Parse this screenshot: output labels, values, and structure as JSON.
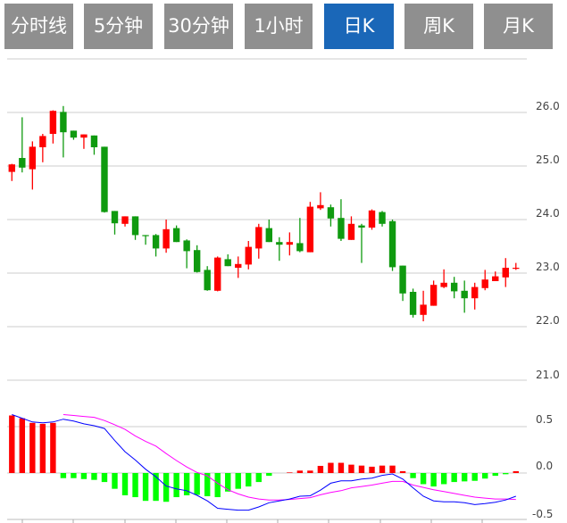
{
  "tabs": [
    {
      "label": "分时线",
      "active": false
    },
    {
      "label": "5分钟",
      "active": false
    },
    {
      "label": "30分钟",
      "active": false
    },
    {
      "label": "1小时",
      "active": false
    },
    {
      "label": "日K",
      "active": true
    },
    {
      "label": "周K",
      "active": false
    },
    {
      "label": "月K",
      "active": false
    }
  ],
  "colors": {
    "tab": "#8f8f8f",
    "tab_active": "#1a67b8",
    "up": "#ff0000",
    "down": "#0f9a0f",
    "macd_down": "#00ff00",
    "dif": "#0000ff",
    "dea": "#ff00ff",
    "grid": "#dddddd"
  },
  "chart_data": [
    {
      "type": "candlestick",
      "ylim": [
        21.0,
        27.0
      ],
      "yticks": [
        "26.0",
        "25.0",
        "24.0",
        "23.0",
        "22.0",
        "21.0"
      ],
      "grid": true,
      "ohlc": [
        [
          24.89,
          25.04,
          24.72,
          25.03
        ],
        [
          25.15,
          25.91,
          24.88,
          24.97
        ],
        [
          24.94,
          25.46,
          24.56,
          25.36
        ],
        [
          25.35,
          25.6,
          25.07,
          25.56
        ],
        [
          25.6,
          26.04,
          25.42,
          26.03
        ],
        [
          26.01,
          26.12,
          25.16,
          25.63
        ],
        [
          25.66,
          25.66,
          25.49,
          25.53
        ],
        [
          25.53,
          25.59,
          25.32,
          25.59
        ],
        [
          25.57,
          25.57,
          25.21,
          25.35
        ],
        [
          25.36,
          25.36,
          24.13,
          24.14
        ],
        [
          24.16,
          24.16,
          23.72,
          23.93
        ],
        [
          23.92,
          24.06,
          23.87,
          24.06
        ],
        [
          24.06,
          24.06,
          23.62,
          23.71
        ],
        [
          23.71,
          23.71,
          23.53,
          23.7
        ],
        [
          23.71,
          23.73,
          23.31,
          23.46
        ],
        [
          23.46,
          24.0,
          23.38,
          23.82
        ],
        [
          23.84,
          23.89,
          23.58,
          23.58
        ],
        [
          23.61,
          23.63,
          23.09,
          23.41
        ],
        [
          23.43,
          23.52,
          23.01,
          23.02
        ],
        [
          23.06,
          23.13,
          22.67,
          22.68
        ],
        [
          22.67,
          23.31,
          22.66,
          23.29
        ],
        [
          23.26,
          23.35,
          23.13,
          23.13
        ],
        [
          23.1,
          23.31,
          22.91,
          23.17
        ],
        [
          23.16,
          23.6,
          23.07,
          23.49
        ],
        [
          23.46,
          23.92,
          23.27,
          23.86
        ],
        [
          23.84,
          24.0,
          23.58,
          23.58
        ],
        [
          23.58,
          23.67,
          23.23,
          23.53
        ],
        [
          23.53,
          23.76,
          23.33,
          23.58
        ],
        [
          23.56,
          24.03,
          23.39,
          23.41
        ],
        [
          23.39,
          24.33,
          23.39,
          24.24
        ],
        [
          24.21,
          24.51,
          24.18,
          24.27
        ],
        [
          24.23,
          24.28,
          23.87,
          24.02
        ],
        [
          24.03,
          24.38,
          23.6,
          23.64
        ],
        [
          23.62,
          24.06,
          23.62,
          23.92
        ],
        [
          23.89,
          23.92,
          23.19,
          23.85
        ],
        [
          23.85,
          24.19,
          23.81,
          24.17
        ],
        [
          24.14,
          24.16,
          23.87,
          23.92
        ],
        [
          23.97,
          24.0,
          23.04,
          23.11
        ],
        [
          23.14,
          23.14,
          22.48,
          22.62
        ],
        [
          22.65,
          22.71,
          22.17,
          22.22
        ],
        [
          22.22,
          22.67,
          22.1,
          22.41
        ],
        [
          22.39,
          22.86,
          22.39,
          22.78
        ],
        [
          22.74,
          23.07,
          22.72,
          22.82
        ],
        [
          22.82,
          22.93,
          22.53,
          22.66
        ],
        [
          22.67,
          22.86,
          22.26,
          22.53
        ],
        [
          22.53,
          22.82,
          22.32,
          22.74
        ],
        [
          22.72,
          23.06,
          22.68,
          22.88
        ],
        [
          22.85,
          23.03,
          22.85,
          22.94
        ],
        [
          22.92,
          23.28,
          22.74,
          23.1
        ],
        [
          23.09,
          23.19,
          23.06,
          23.1
        ]
      ]
    },
    {
      "type": "macd",
      "ylim": [
        -0.5,
        0.7
      ],
      "yticks": [
        "0.5",
        "0.0",
        "-0.5"
      ],
      "histogram": [
        0.62,
        0.59,
        0.54,
        0.53,
        0.54,
        -0.055,
        -0.055,
        -0.065,
        -0.074,
        -0.097,
        -0.17,
        -0.24,
        -0.26,
        -0.3,
        -0.3,
        -0.31,
        -0.26,
        -0.24,
        -0.235,
        -0.25,
        -0.26,
        -0.2,
        -0.17,
        -0.145,
        -0.097,
        -0.03,
        0,
        0.006,
        0.026,
        0.026,
        0.077,
        0.11,
        0.11,
        0.09,
        0.08,
        0.068,
        0.08,
        0.08,
        0.02,
        -0.055,
        -0.12,
        -0.145,
        -0.12,
        -0.097,
        -0.09,
        -0.084,
        -0.06,
        -0.03,
        -0.013,
        0.02
      ],
      "dif": [
        0.63,
        0.59,
        0.55,
        0.54,
        0.55,
        0.58,
        0.56,
        0.53,
        0.51,
        0.48,
        0.35,
        0.23,
        0.14,
        0.04,
        -0.04,
        -0.14,
        -0.17,
        -0.19,
        -0.24,
        -0.3,
        -0.38,
        -0.39,
        -0.4,
        -0.4,
        -0.365,
        -0.32,
        -0.3,
        -0.28,
        -0.25,
        -0.245,
        -0.185,
        -0.11,
        -0.085,
        -0.085,
        -0.065,
        -0.055,
        -0.025,
        -0.01,
        -0.065,
        -0.16,
        -0.25,
        -0.3,
        -0.31,
        -0.31,
        -0.32,
        -0.34,
        -0.33,
        -0.315,
        -0.29,
        -0.25
      ],
      "dea": [
        null,
        null,
        null,
        null,
        null,
        0.63,
        0.62,
        0.61,
        0.6,
        0.565,
        0.52,
        0.47,
        0.4,
        0.34,
        0.29,
        0.21,
        0.135,
        0.065,
        0.006,
        -0.03,
        -0.11,
        -0.18,
        -0.225,
        -0.26,
        -0.28,
        -0.29,
        -0.29,
        -0.285,
        -0.275,
        -0.265,
        -0.235,
        -0.21,
        -0.19,
        -0.16,
        -0.145,
        -0.13,
        -0.11,
        -0.09,
        -0.09,
        -0.13,
        -0.155,
        -0.18,
        -0.2,
        -0.22,
        -0.24,
        -0.26,
        -0.27,
        -0.28,
        -0.28,
        -0.285
      ]
    }
  ]
}
